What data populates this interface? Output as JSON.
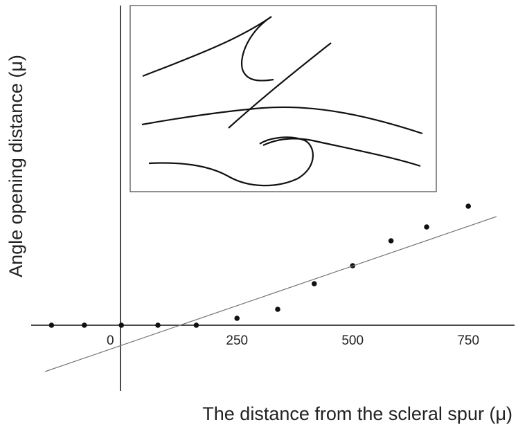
{
  "chart_data": {
    "type": "scatter",
    "x_label": "The distance from the scleral spur (μ)",
    "y_label": "Angle opening distance (μ)",
    "xlim": [
      -195,
      850
    ],
    "ylim": [
      -95,
      462
    ],
    "xticks": [
      0,
      250,
      500,
      750
    ],
    "series": [
      {
        "color": "#111111",
        "x": [
          -151,
          -80,
          0,
          79,
          162,
          250,
          338,
          417,
          500,
          583,
          660,
          750
        ],
        "values": [
          0,
          0,
          0,
          0,
          0,
          10,
          23,
          60,
          86,
          122,
          142,
          172
        ]
      },
      {
        "type": "line",
        "color": "#777777",
        "x": [
          -165,
          811
        ],
        "values": [
          -67,
          157
        ]
      }
    ]
  }
}
